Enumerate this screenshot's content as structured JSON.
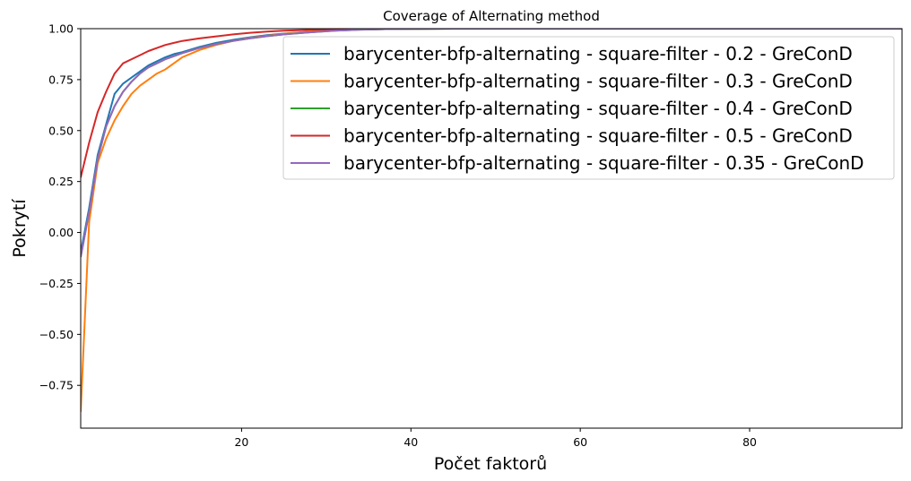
{
  "chart_data": {
    "type": "line",
    "title": "Coverage of Alternating method",
    "xlabel": "Počet faktorů",
    "ylabel": "Pokrytí",
    "xlim": [
      1,
      98
    ],
    "ylim": [
      -0.96,
      1.0
    ],
    "x_ticks": [
      20,
      40,
      60,
      80
    ],
    "x_tick_labels": [
      "20",
      "40",
      "60",
      "80"
    ],
    "y_ticks": [
      1.0,
      0.75,
      0.5,
      0.25,
      0.0,
      -0.25,
      -0.5,
      -0.75
    ],
    "y_tick_labels": [
      "1.00",
      "0.75",
      "0.50",
      "0.25",
      "0.00",
      "−0.25",
      "−0.50",
      "−0.75"
    ],
    "grid": false,
    "legend_position": "top-right",
    "series": [
      {
        "name": "barycenter-bfp-alternating - square-filter - 0.2 - GreConD",
        "color": "#1f77b4",
        "x": [
          1,
          2,
          3,
          4,
          5,
          6,
          7,
          8,
          9,
          10,
          11,
          12,
          13,
          15,
          17,
          19,
          21,
          23,
          25,
          28,
          31,
          34,
          37,
          40,
          45,
          98
        ],
        "y": [
          -0.1,
          0.12,
          0.38,
          0.53,
          0.68,
          0.73,
          0.76,
          0.79,
          0.82,
          0.84,
          0.86,
          0.875,
          0.885,
          0.91,
          0.93,
          0.945,
          0.958,
          0.968,
          0.976,
          0.985,
          0.992,
          0.996,
          0.998,
          0.999,
          1.0,
          1.0
        ]
      },
      {
        "name": "barycenter-bfp-alternating - square-filter - 0.3 - GreConD",
        "color": "#ff7f0e",
        "x": [
          1,
          2,
          3,
          4,
          5,
          6,
          7,
          8,
          9,
          10,
          11,
          12,
          13,
          15,
          17,
          19,
          21,
          23,
          25,
          28,
          31,
          34,
          37,
          40,
          45,
          98
        ],
        "y": [
          -0.88,
          0.05,
          0.34,
          0.46,
          0.55,
          0.62,
          0.68,
          0.72,
          0.75,
          0.78,
          0.8,
          0.83,
          0.86,
          0.895,
          0.92,
          0.94,
          0.955,
          0.965,
          0.975,
          0.985,
          0.992,
          0.996,
          0.998,
          0.999,
          1.0,
          1.0
        ]
      },
      {
        "name": "barycenter-bfp-alternating - square-filter - 0.4 - GreConD",
        "color": "#2ca02c",
        "x": [
          1,
          2,
          3,
          4,
          5,
          6,
          7,
          8,
          9,
          10,
          11,
          12,
          13,
          15,
          17,
          19,
          21,
          23,
          25,
          28,
          31,
          34,
          37,
          40,
          45,
          98
        ],
        "y": [
          -0.12,
          0.1,
          0.36,
          0.52,
          0.62,
          0.69,
          0.74,
          0.78,
          0.81,
          0.83,
          0.85,
          0.865,
          0.88,
          0.905,
          0.925,
          0.94,
          0.953,
          0.963,
          0.972,
          0.982,
          0.99,
          0.995,
          0.998,
          0.999,
          1.0,
          1.0
        ]
      },
      {
        "name": "barycenter-bfp-alternating - square-filter - 0.5 - GreConD",
        "color": "#d62728",
        "x": [
          1,
          2,
          3,
          4,
          5,
          6,
          7,
          8,
          9,
          10,
          11,
          12,
          13,
          15,
          17,
          19,
          21,
          23,
          25,
          28,
          31,
          34,
          37,
          40,
          45,
          98
        ],
        "y": [
          0.27,
          0.44,
          0.59,
          0.69,
          0.78,
          0.83,
          0.85,
          0.87,
          0.89,
          0.905,
          0.92,
          0.93,
          0.94,
          0.952,
          0.962,
          0.972,
          0.98,
          0.986,
          0.99,
          0.994,
          0.997,
          0.999,
          1.0,
          1.0,
          1.0,
          1.0
        ]
      },
      {
        "name": "barycenter-bfp-alternating - square-filter - 0.35 - GreConD",
        "color": "#9467bd",
        "x": [
          1,
          2,
          3,
          4,
          5,
          6,
          7,
          8,
          9,
          10,
          11,
          12,
          13,
          15,
          17,
          19,
          21,
          23,
          25,
          28,
          31,
          34,
          37,
          40,
          45,
          98
        ],
        "y": [
          -0.12,
          0.1,
          0.36,
          0.52,
          0.62,
          0.69,
          0.74,
          0.78,
          0.81,
          0.83,
          0.85,
          0.865,
          0.88,
          0.905,
          0.925,
          0.94,
          0.953,
          0.963,
          0.972,
          0.982,
          0.99,
          0.995,
          0.998,
          0.999,
          1.0,
          1.0
        ]
      }
    ]
  }
}
